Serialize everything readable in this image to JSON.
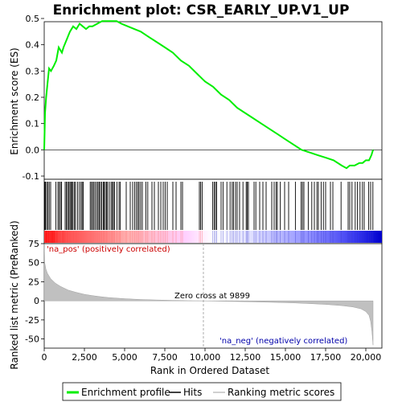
{
  "chart_data": [
    {
      "type": "line",
      "title": "Enrichment plot: CSR_EARLY_UP.V1_UP",
      "ylabel": "Enrichment score (ES)",
      "ylim": [
        -0.1,
        0.5
      ],
      "yticks": [
        "-0.1",
        "0.0",
        "0.1",
        "0.2",
        "0.3",
        "0.4",
        "0.5"
      ],
      "yticks_values": [
        -0.1,
        0.0,
        0.1,
        0.2,
        0.3,
        0.4,
        0.5
      ],
      "xlim": [
        0,
        21000
      ],
      "series": [
        {
          "name": "Enrichment profile",
          "color": "#00ee00",
          "x": [
            0,
            50,
            120,
            200,
            300,
            420,
            600,
            750,
            900,
            1000,
            1100,
            1200,
            1400,
            1600,
            1800,
            2000,
            2200,
            2400,
            2600,
            2800,
            3000,
            3300,
            3600,
            3900,
            4200,
            4500,
            4800,
            5200,
            5600,
            6000,
            6500,
            7000,
            7500,
            8000,
            8500,
            9000,
            9500,
            10000,
            10500,
            11000,
            11500,
            12000,
            12500,
            13000,
            13500,
            14000,
            14500,
            15000,
            15500,
            16000,
            16500,
            17000,
            17500,
            18000,
            18500,
            18800,
            19000,
            19300,
            19600,
            19800,
            20000,
            20200,
            20350,
            20450
          ],
          "y": [
            0.0,
            0.14,
            0.2,
            0.25,
            0.31,
            0.3,
            0.32,
            0.34,
            0.39,
            0.38,
            0.37,
            0.39,
            0.42,
            0.45,
            0.47,
            0.46,
            0.48,
            0.47,
            0.46,
            0.47,
            0.47,
            0.48,
            0.49,
            0.49,
            0.49,
            0.49,
            0.48,
            0.47,
            0.46,
            0.45,
            0.43,
            0.41,
            0.39,
            0.37,
            0.34,
            0.32,
            0.29,
            0.26,
            0.24,
            0.21,
            0.19,
            0.16,
            0.14,
            0.12,
            0.1,
            0.08,
            0.06,
            0.04,
            0.02,
            0.0,
            -0.01,
            -0.02,
            -0.03,
            -0.04,
            -0.06,
            -0.07,
            -0.06,
            -0.06,
            -0.05,
            -0.05,
            -0.04,
            -0.04,
            -0.02,
            0.0
          ]
        }
      ],
      "zero_line": 0.0
    },
    {
      "type": "bar",
      "title": "",
      "series": [
        {
          "name": "Hits",
          "color": "#000000",
          "x": [
            30,
            80,
            150,
            230,
            310,
            400,
            720,
            850,
            930,
            1010,
            1080,
            1300,
            1380,
            1450,
            1520,
            1600,
            1660,
            1720,
            1790,
            1880,
            1950,
            2080,
            2190,
            2290,
            2360,
            2430,
            2860,
            2940,
            3010,
            3090,
            3170,
            3270,
            3350,
            3420,
            3500,
            3580,
            3670,
            3720,
            3800,
            3880,
            3940,
            4050,
            4160,
            4240,
            4300,
            4380,
            4520,
            4650,
            4720,
            5100,
            5350,
            5500,
            5620,
            5730,
            5820,
            5900,
            6000,
            6100,
            6320,
            6440,
            6700,
            6850,
            7100,
            7250,
            7400,
            7520,
            7650,
            8000,
            8200,
            8500,
            8600,
            9650,
            9730,
            9820,
            10480,
            10570,
            10650,
            10720,
            11000,
            11120,
            11360,
            11560,
            11690,
            11770,
            11900,
            12000,
            12150,
            12360,
            12560,
            12630,
            12700,
            13050,
            13160,
            13400,
            13600,
            13800,
            14150,
            14300,
            14420,
            14500,
            14680,
            14950,
            15200,
            15620,
            15980,
            16060,
            16150,
            16420,
            16640,
            16800,
            16960,
            17050,
            17220,
            17360,
            17500,
            17800,
            17950,
            18460,
            18900,
            19000,
            19140,
            19340,
            19480,
            19640,
            19790,
            19900,
            20180,
            20300,
            20440
          ]
        }
      ],
      "annotations": [
        "'na_pos' (positively correlated)",
        "'na_neg' (negatively correlated)"
      ]
    },
    {
      "type": "area",
      "title": "",
      "xlabel": "Rank in Ordered Dataset",
      "ylabel": "Ranked list metric (PreRanked)",
      "ylim": [
        -62,
        75
      ],
      "yticks": [
        "-50",
        "-25",
        "0",
        "25",
        "50",
        "75"
      ],
      "yticks_values": [
        -50,
        -25,
        0,
        25,
        50,
        75
      ],
      "xticks": [
        "0",
        "2,500",
        "5,000",
        "7,500",
        "10,000",
        "12,500",
        "15,000",
        "17,500",
        "20,000"
      ],
      "xticks_values": [
        0,
        2500,
        5000,
        7500,
        10000,
        12500,
        15000,
        17500,
        20000
      ],
      "xlim": [
        0,
        21000
      ],
      "series": [
        {
          "name": "Ranking metric scores",
          "color": "#c0c0c0",
          "x": [
            0,
            30,
            100,
            200,
            400,
            700,
            1000,
            1500,
            2000,
            2500,
            3000,
            3500,
            4000,
            5000,
            6000,
            7000,
            8000,
            9000,
            9899,
            11000,
            12500,
            14000,
            15500,
            16500,
            17500,
            18500,
            19200,
            19700,
            20000,
            20200,
            20300,
            20380,
            20450
          ],
          "y": [
            75,
            50,
            42,
            36,
            29,
            23,
            19,
            14,
            11,
            8.5,
            6.8,
            5.4,
            4.3,
            2.8,
            1.8,
            1.1,
            0.6,
            0.2,
            0,
            -0.5,
            -1.1,
            -1.8,
            -2.7,
            -3.6,
            -4.7,
            -6.3,
            -8,
            -10.5,
            -14,
            -19,
            -27,
            -40,
            -58
          ]
        }
      ],
      "annotations": [
        "Zero cross at 9899"
      ],
      "zero_cross": 9899
    }
  ],
  "legend": {
    "items": [
      "Enrichment profile",
      "Hits",
      "Ranking metric scores"
    ],
    "colors": [
      "#00ee00",
      "#000000",
      "#c0c0c0"
    ]
  }
}
